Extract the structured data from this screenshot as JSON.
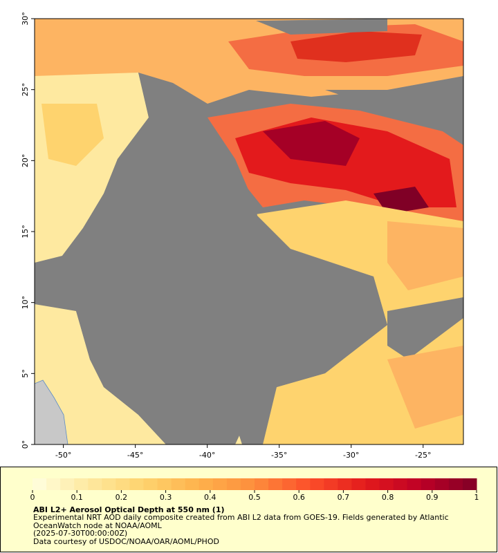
{
  "map": {
    "xlim": [
      -52,
      -22.2
    ],
    "ylim": [
      0,
      30
    ],
    "xticks": [
      {
        "value": -50,
        "label": "-50°"
      },
      {
        "value": -45,
        "label": "-45°"
      },
      {
        "value": -40,
        "label": "-40°"
      },
      {
        "value": -35,
        "label": "-35°"
      },
      {
        "value": -30,
        "label": "-30°"
      },
      {
        "value": -25,
        "label": "-25°"
      }
    ],
    "yticks": [
      {
        "value": 0,
        "label": "0°"
      },
      {
        "value": 5,
        "label": "5°"
      },
      {
        "value": 10,
        "label": "10°"
      },
      {
        "value": 15,
        "label": "15°"
      },
      {
        "value": 20,
        "label": "20°"
      },
      {
        "value": 25,
        "label": "25°"
      },
      {
        "value": 30,
        "label": "30°"
      }
    ]
  },
  "colorbar": {
    "lim": [
      0,
      1
    ],
    "ticks": [
      0,
      0.1,
      0.2,
      0.3,
      0.4,
      0.5,
      0.6,
      0.7,
      0.8,
      0.9,
      1
    ],
    "colors": [
      "#ffffe0",
      "#fee9a0",
      "#fed36e",
      "#feb24c",
      "#fd8d3c",
      "#fc4e2a",
      "#e31a1c",
      "#bd0026",
      "#800026"
    ]
  },
  "caption": {
    "title": "ABI L2+ Aerosol Optical Depth at 550 nm (1)",
    "lines": [
      "Experimental NRT AOD daily composite created from ABI L2 data from GOES-19. Fields generated by Atlantic",
      "OceanWatch node at NOAA/AOML",
      "(2025-07-30T00:00:00Z)",
      "Data courtesy of USDOC/NOAA/OAR/AOML/PHOD"
    ]
  }
}
